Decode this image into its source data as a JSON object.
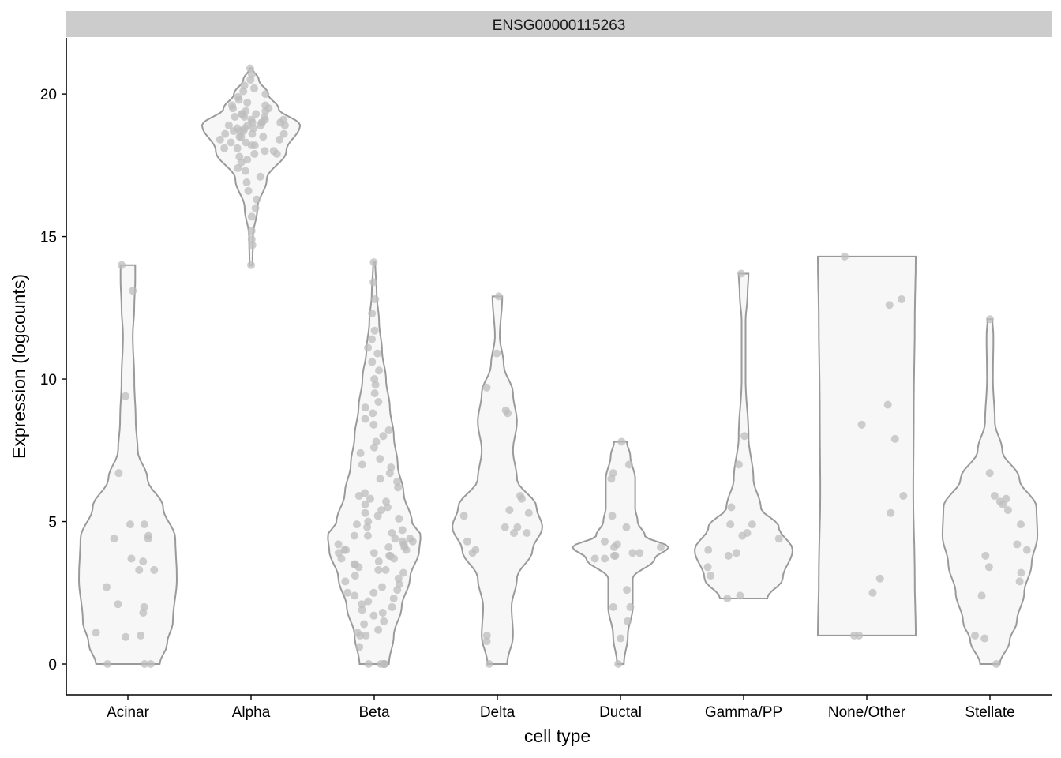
{
  "chart_data": {
    "type": "violin",
    "facet_label": "ENSG00000115263",
    "xlabel": "cell type",
    "ylabel": "Expression (logcounts)",
    "ylim": [
      -1.08,
      21.97
    ],
    "yticks": [
      0,
      5,
      10,
      15,
      20
    ],
    "grid": false,
    "colors": {
      "violin_stroke": "#9a9a9a",
      "violin_fill": "#f7f7f7",
      "point": "#bdbdbd",
      "strip": "#cccccc"
    },
    "categories": [
      "Acinar",
      "Alpha",
      "Beta",
      "Delta",
      "Ductal",
      "Gamma/PP",
      "None/Other",
      "Stellate"
    ],
    "series": [
      {
        "category": "Acinar",
        "violin_profile": [
          [
            0,
            0.65
          ],
          [
            0.7,
            0.8
          ],
          [
            1.5,
            0.92
          ],
          [
            3,
            1.0
          ],
          [
            4.4,
            0.97
          ],
          [
            5.5,
            0.72
          ],
          [
            6.5,
            0.4
          ],
          [
            7.5,
            0.2
          ],
          [
            8.5,
            0.16
          ],
          [
            10,
            0.13
          ],
          [
            11.5,
            0.1
          ],
          [
            12.5,
            0.13
          ],
          [
            13.5,
            0.15
          ],
          [
            14,
            0.15
          ]
        ],
        "values": [
          14.0,
          13.1,
          9.4,
          6.7,
          4.9,
          4.9,
          4.4,
          4.4,
          4.5,
          3.7,
          3.6,
          3.3,
          3.3,
          2.7,
          2.1,
          2.0,
          1.8,
          1.1,
          1.0,
          0.95,
          0,
          0,
          0
        ]
      },
      {
        "category": "Alpha",
        "violin_profile": [
          [
            14,
            0.03
          ],
          [
            15,
            0.04
          ],
          [
            16,
            0.13
          ],
          [
            17,
            0.32
          ],
          [
            18,
            0.72
          ],
          [
            18.9,
            1.0
          ],
          [
            19.5,
            0.56
          ],
          [
            20,
            0.35
          ],
          [
            20.5,
            0.16
          ],
          [
            20.9,
            0.03
          ]
        ],
        "values": [
          14.0,
          14.7,
          14.9,
          15.2,
          15.7,
          16.0,
          16.3,
          16.6,
          16.9,
          17.1,
          17.3,
          17.4,
          17.6,
          17.7,
          17.8,
          17.9,
          17.9,
          18.0,
          18.0,
          18.1,
          18.1,
          18.2,
          18.2,
          18.3,
          18.3,
          18.4,
          18.4,
          18.5,
          18.5,
          18.5,
          18.6,
          18.6,
          18.6,
          18.7,
          18.7,
          18.7,
          18.8,
          18.8,
          18.8,
          18.9,
          18.9,
          18.9,
          18.9,
          19.0,
          19.0,
          19.0,
          19.0,
          19.1,
          19.1,
          19.1,
          19.2,
          19.2,
          19.2,
          19.3,
          19.3,
          19.3,
          19.4,
          19.4,
          19.5,
          19.5,
          19.6,
          19.6,
          19.7,
          19.8,
          19.9,
          20.0,
          20.1,
          20.2,
          20.3,
          20.5,
          20.7,
          20.9
        ]
      },
      {
        "category": "Beta",
        "violin_profile": [
          [
            0,
            0.3
          ],
          [
            1,
            0.4
          ],
          [
            2,
            0.56
          ],
          [
            3,
            0.73
          ],
          [
            4,
            0.92
          ],
          [
            4.5,
            0.95
          ],
          [
            5,
            0.77
          ],
          [
            6,
            0.6
          ],
          [
            7,
            0.48
          ],
          [
            8,
            0.4
          ],
          [
            9,
            0.32
          ],
          [
            10,
            0.24
          ],
          [
            11,
            0.16
          ],
          [
            12,
            0.1
          ],
          [
            13,
            0.05
          ],
          [
            14.1,
            0.02
          ]
        ],
        "values": [
          0,
          0,
          0,
          0,
          0,
          0,
          0,
          0.6,
          1.0,
          1.0,
          1.1,
          1.2,
          1.4,
          1.5,
          1.7,
          1.8,
          1.9,
          2.0,
          2.1,
          2.2,
          2.3,
          2.4,
          2.5,
          2.5,
          2.6,
          2.7,
          2.8,
          2.9,
          3.0,
          3.1,
          3.2,
          3.3,
          3.3,
          3.4,
          3.5,
          3.5,
          3.6,
          3.7,
          3.7,
          3.8,
          3.8,
          3.9,
          3.9,
          4.0,
          4.0,
          4.0,
          4.1,
          4.1,
          4.2,
          4.2,
          4.3,
          4.3,
          4.4,
          4.4,
          4.5,
          4.5,
          4.6,
          4.7,
          4.8,
          4.9,
          5.0,
          5.1,
          5.2,
          5.3,
          5.4,
          5.5,
          5.6,
          5.7,
          5.8,
          5.9,
          6.0,
          6.2,
          6.4,
          6.5,
          6.7,
          6.9,
          7.0,
          7.2,
          7.4,
          7.6,
          7.8,
          8.0,
          8.2,
          8.4,
          8.6,
          8.8,
          9.0,
          9.2,
          9.5,
          9.8,
          10.0,
          10.3,
          10.6,
          10.9,
          11.1,
          11.4,
          11.7,
          12.3,
          12.8,
          13.4,
          14.1
        ]
      },
      {
        "category": "Delta",
        "violin_profile": [
          [
            0,
            0.2
          ],
          [
            1,
            0.32
          ],
          [
            2,
            0.29
          ],
          [
            3,
            0.4
          ],
          [
            4,
            0.72
          ],
          [
            4.8,
            0.92
          ],
          [
            5.5,
            0.8
          ],
          [
            6.5,
            0.4
          ],
          [
            7.5,
            0.32
          ],
          [
            8.5,
            0.4
          ],
          [
            9.5,
            0.32
          ],
          [
            10.5,
            0.13
          ],
          [
            11.5,
            0.05
          ],
          [
            12.9,
            0.1
          ]
        ],
        "values": [
          12.9,
          10.9,
          9.7,
          8.9,
          8.8,
          5.9,
          5.8,
          5.4,
          5.3,
          5.2,
          4.8,
          4.8,
          4.6,
          4.6,
          4.3,
          4.0,
          3.9,
          1.0,
          0.8,
          0
        ]
      },
      {
        "category": "Ductal",
        "violin_profile": [
          [
            0,
            0.07
          ],
          [
            1,
            0.15
          ],
          [
            2,
            0.25
          ],
          [
            3,
            0.25
          ],
          [
            3.7,
            0.7
          ],
          [
            4.1,
            0.98
          ],
          [
            4.5,
            0.5
          ],
          [
            5,
            0.35
          ],
          [
            5.5,
            0.3
          ],
          [
            6.5,
            0.3
          ],
          [
            7.3,
            0.2
          ],
          [
            7.8,
            0.13
          ]
        ],
        "values": [
          7.8,
          7.0,
          6.7,
          6.5,
          5.2,
          4.8,
          4.3,
          4.2,
          4.1,
          4.1,
          3.9,
          3.9,
          3.8,
          3.8,
          3.7,
          3.7,
          2.6,
          2.0,
          2.0,
          1.5,
          0.9,
          0
        ]
      },
      {
        "category": "Gamma/PP",
        "violin_profile": [
          [
            2.3,
            0.48
          ],
          [
            3,
            0.8
          ],
          [
            4,
            1.0
          ],
          [
            4.8,
            0.72
          ],
          [
            5.5,
            0.35
          ],
          [
            6.5,
            0.2
          ],
          [
            8,
            0.1
          ],
          [
            10,
            0.04
          ],
          [
            12,
            0.04
          ],
          [
            13,
            0.08
          ],
          [
            13.7,
            0.1
          ]
        ],
        "values": [
          13.7,
          8.0,
          7.0,
          5.5,
          4.9,
          4.9,
          4.6,
          4.5,
          4.4,
          4.0,
          3.9,
          3.8,
          3.4,
          3.1,
          2.4,
          2.3
        ]
      },
      {
        "category": "None/Other",
        "violin_profile": [
          [
            1,
            1.0
          ],
          [
            3,
            0.98
          ],
          [
            6,
            0.95
          ],
          [
            9,
            0.96
          ],
          [
            12,
            0.98
          ],
          [
            14.3,
            1.0
          ]
        ],
        "values": [
          14.3,
          12.8,
          12.6,
          9.1,
          8.4,
          7.9,
          5.9,
          5.3,
          3.0,
          2.5,
          1.0,
          1.0
        ]
      },
      {
        "category": "Stellate",
        "violin_profile": [
          [
            0,
            0.2
          ],
          [
            0.8,
            0.4
          ],
          [
            1.5,
            0.55
          ],
          [
            2.5,
            0.7
          ],
          [
            3.5,
            0.85
          ],
          [
            4.5,
            0.97
          ],
          [
            5.5,
            0.95
          ],
          [
            6.5,
            0.6
          ],
          [
            7.5,
            0.25
          ],
          [
            8.5,
            0.1
          ],
          [
            10,
            0.06
          ],
          [
            11.5,
            0.07
          ],
          [
            12.1,
            0.05
          ]
        ],
        "values": [
          12.1,
          6.7,
          5.9,
          5.8,
          5.6,
          5.7,
          5.4,
          4.9,
          4.2,
          4.0,
          3.8,
          3.4,
          3.2,
          2.9,
          2.4,
          1.0,
          0.9,
          0
        ]
      }
    ]
  }
}
